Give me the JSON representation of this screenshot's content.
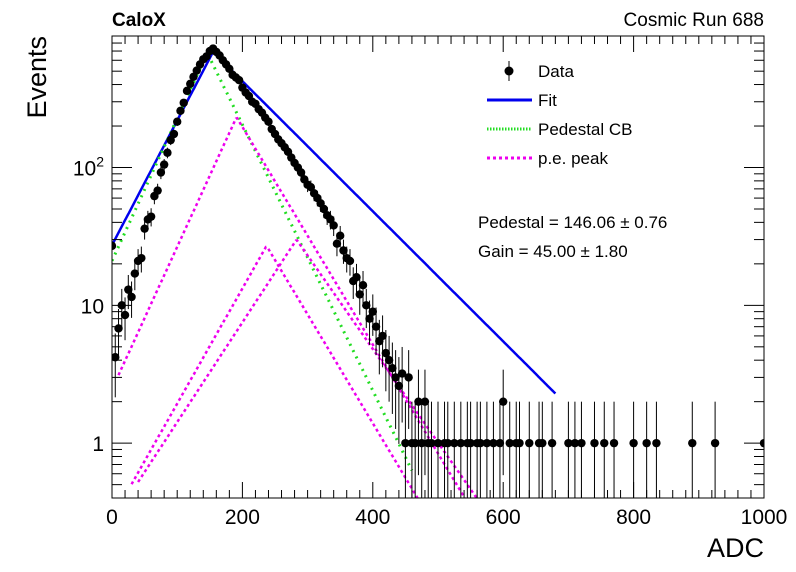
{
  "header": {
    "experiment": "CaloX",
    "run": "Cosmic Run 688"
  },
  "chart_data": {
    "type": "scatter",
    "xlabel": "ADC",
    "ylabel": "Events",
    "xlim": [
      0,
      1000
    ],
    "ylim": [
      0.4,
      900
    ],
    "y_scale": "log",
    "x_ticks": [
      "0",
      "200",
      "400",
      "600",
      "800",
      "1000"
    ],
    "y_ticks": [
      {
        "value": 1,
        "label": "1"
      },
      {
        "value": 10,
        "label": "10"
      },
      {
        "value": 100,
        "label": "10",
        "exponent": "2"
      }
    ],
    "legend": {
      "position": "top-right",
      "entries": [
        {
          "label": "Data",
          "style": "marker",
          "color": "#000000"
        },
        {
          "label": "Fit",
          "style": "solid",
          "color": "#0000ee"
        },
        {
          "label": "Pedestal CB",
          "style": "dotted",
          "color": "#22dd22"
        },
        {
          "label": "p.e. peak",
          "style": "dotted",
          "color": "#ee00ee"
        }
      ]
    },
    "annotations": [
      {
        "name": "pedestal",
        "text": "Pedestal = 146.06 ± 0.76"
      },
      {
        "name": "gain",
        "text": "Gain = 45.00 ± 1.80"
      }
    ],
    "data_points": [
      [
        0,
        27
      ],
      [
        5,
        4.2
      ],
      [
        10,
        6.8
      ],
      [
        15,
        10
      ],
      [
        20,
        8.5
      ],
      [
        25,
        13
      ],
      [
        30,
        11.5
      ],
      [
        35,
        17
      ],
      [
        40,
        21
      ],
      [
        45,
        22
      ],
      [
        50,
        36
      ],
      [
        55,
        42
      ],
      [
        60,
        44
      ],
      [
        65,
        62
      ],
      [
        70,
        68
      ],
      [
        75,
        92
      ],
      [
        80,
        105
      ],
      [
        85,
        128
      ],
      [
        90,
        158
      ],
      [
        95,
        175
      ],
      [
        100,
        215
      ],
      [
        105,
        258
      ],
      [
        110,
        295
      ],
      [
        115,
        360
      ],
      [
        120,
        405
      ],
      [
        125,
        455
      ],
      [
        130,
        505
      ],
      [
        135,
        560
      ],
      [
        140,
        610
      ],
      [
        145,
        640
      ],
      [
        150,
        700
      ],
      [
        155,
        730
      ],
      [
        160,
        690
      ],
      [
        165,
        650
      ],
      [
        170,
        600
      ],
      [
        175,
        560
      ],
      [
        180,
        520
      ],
      [
        185,
        470
      ],
      [
        190,
        450
      ],
      [
        195,
        430
      ],
      [
        200,
        380
      ],
      [
        205,
        350
      ],
      [
        210,
        330
      ],
      [
        215,
        300
      ],
      [
        220,
        290
      ],
      [
        225,
        265
      ],
      [
        230,
        250
      ],
      [
        235,
        230
      ],
      [
        240,
        215
      ],
      [
        245,
        190
      ],
      [
        250,
        175
      ],
      [
        255,
        160
      ],
      [
        260,
        150
      ],
      [
        265,
        140
      ],
      [
        270,
        130
      ],
      [
        275,
        118
      ],
      [
        280,
        108
      ],
      [
        285,
        100
      ],
      [
        290,
        92
      ],
      [
        295,
        82
      ],
      [
        300,
        75
      ],
      [
        305,
        72
      ],
      [
        310,
        65
      ],
      [
        315,
        60
      ],
      [
        320,
        55
      ],
      [
        325,
        50
      ],
      [
        330,
        45
      ],
      [
        335,
        42
      ],
      [
        340,
        38
      ],
      [
        345,
        28
      ],
      [
        350,
        32
      ],
      [
        355,
        25
      ],
      [
        360,
        22
      ],
      [
        365,
        21
      ],
      [
        370,
        15
      ],
      [
        375,
        16
      ],
      [
        380,
        12
      ],
      [
        385,
        14
      ],
      [
        390,
        10
      ],
      [
        395,
        8
      ],
      [
        400,
        9
      ],
      [
        405,
        7
      ],
      [
        410,
        5.5
      ],
      [
        415,
        6
      ],
      [
        420,
        4.5
      ],
      [
        425,
        4
      ],
      [
        430,
        3.5
      ],
      [
        435,
        3
      ],
      [
        440,
        2.6
      ],
      [
        445,
        3.2
      ],
      [
        450,
        1
      ],
      [
        455,
        3
      ],
      [
        460,
        1
      ],
      [
        465,
        1
      ],
      [
        470,
        2
      ],
      [
        475,
        1
      ],
      [
        480,
        2
      ],
      [
        485,
        1
      ],
      [
        490,
        1
      ],
      [
        500,
        1
      ],
      [
        510,
        1
      ],
      [
        515,
        1
      ],
      [
        525,
        1
      ],
      [
        535,
        1
      ],
      [
        545,
        1
      ],
      [
        550,
        1
      ],
      [
        560,
        1
      ],
      [
        565,
        1
      ],
      [
        575,
        1
      ],
      [
        585,
        1
      ],
      [
        595,
        1
      ],
      [
        600,
        2
      ],
      [
        610,
        1
      ],
      [
        620,
        1
      ],
      [
        625,
        1
      ],
      [
        640,
        1
      ],
      [
        655,
        1
      ],
      [
        660,
        1
      ],
      [
        675,
        1
      ],
      [
        700,
        1
      ],
      [
        710,
        1
      ],
      [
        720,
        1
      ],
      [
        740,
        1
      ],
      [
        755,
        1
      ],
      [
        770,
        1
      ],
      [
        800,
        1
      ],
      [
        820,
        1
      ],
      [
        835,
        1
      ],
      [
        890,
        1
      ],
      [
        925,
        1
      ],
      [
        1000,
        1
      ]
    ],
    "curves": [
      {
        "style": "fit",
        "color": "#0000ee",
        "peak_x": 155,
        "peak_y": 690,
        "left_decay": 48,
        "right_decay": 92,
        "x_range": [
          0,
          680
        ]
      },
      {
        "style": "pedestal",
        "color": "#22dd22",
        "peak_x": 146,
        "peak_y": 680,
        "left_decay": 42,
        "right_decay": 45,
        "x_range": [
          0,
          460
        ]
      },
      {
        "style": "pe",
        "color": "#ee00ee",
        "peak_x": 191,
        "peak_y": 232,
        "left_decay": 42,
        "right_decay": 55,
        "x_range": [
          10,
          600
        ]
      },
      {
        "style": "pe",
        "color": "#ee00ee",
        "peak_x": 237,
        "peak_y": 27,
        "left_decay": 52,
        "right_decay": 55,
        "x_range": [
          30,
          600
        ]
      },
      {
        "style": "pe",
        "color": "#ee00ee",
        "peak_x": 283,
        "peak_y": 30,
        "left_decay": 60,
        "right_decay": 64,
        "x_range": [
          40,
          600
        ]
      }
    ]
  }
}
